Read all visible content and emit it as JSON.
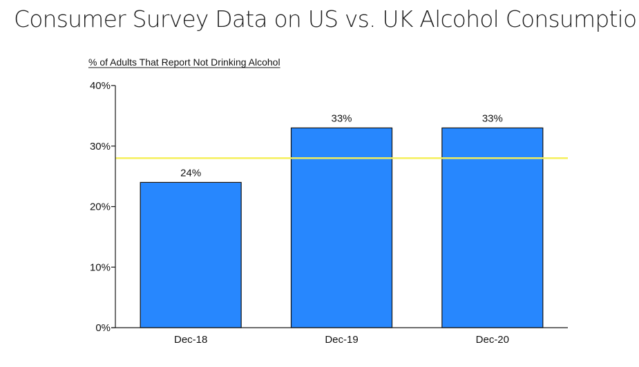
{
  "page": {
    "title": "Consumer Survey Data on US vs. UK Alcohol Consumption"
  },
  "chart_data": {
    "type": "bar",
    "title": "% of Adults That Report Not Drinking Alcohol",
    "xlabel": "",
    "ylabel": "",
    "categories": [
      "Dec-18",
      "Dec-19",
      "Dec-20"
    ],
    "values": [
      24,
      33,
      33
    ],
    "data_labels": [
      "24%",
      "33%",
      "33%"
    ],
    "ylim": [
      0,
      40
    ],
    "yticks": [
      0,
      10,
      20,
      30,
      40
    ],
    "ytick_labels": [
      "0%",
      "10%",
      "20%",
      "30%",
      "40%"
    ],
    "reference_line": {
      "value": 28,
      "color": "#f5ef5a"
    },
    "bar_color": "#2787fe",
    "bar_outline_color": "#111111",
    "grid": false,
    "legend": "none"
  }
}
